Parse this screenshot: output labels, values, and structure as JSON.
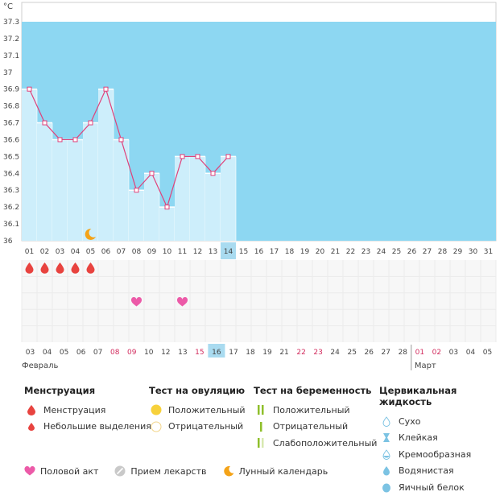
{
  "chart_data": {
    "type": "line",
    "unit": "°C",
    "ylim": [
      36.0,
      37.3
    ],
    "yticks": [
      "37.3",
      "37.2",
      "37.1",
      "37",
      "36.9",
      "36.8",
      "36.7",
      "36.6",
      "36.5",
      "36.4",
      "36.3",
      "36.2",
      "36.1",
      "36"
    ],
    "cycle_days": [
      "01",
      "02",
      "03",
      "04",
      "05",
      "06",
      "07",
      "08",
      "09",
      "10",
      "11",
      "12",
      "13",
      "14",
      "15",
      "16",
      "17",
      "18",
      "19",
      "20",
      "21",
      "22",
      "23",
      "24",
      "25",
      "26",
      "27",
      "28",
      "29",
      "30",
      "31"
    ],
    "temperatures": [
      36.9,
      36.7,
      36.6,
      36.6,
      36.7,
      36.9,
      36.6,
      36.3,
      36.4,
      36.2,
      36.5,
      36.5,
      36.4,
      36.5
    ],
    "highlight_cycle_day": "14",
    "menstruation_days": [
      "01",
      "02",
      "03",
      "04",
      "05"
    ],
    "intercourse_days": [
      "08",
      "11"
    ],
    "lunar_days": [
      "05"
    ],
    "dates": [
      {
        "d": "03",
        "red": false
      },
      {
        "d": "04",
        "red": false
      },
      {
        "d": "05",
        "red": false
      },
      {
        "d": "06",
        "red": false
      },
      {
        "d": "07",
        "red": false
      },
      {
        "d": "08",
        "red": true
      },
      {
        "d": "09",
        "red": true
      },
      {
        "d": "10",
        "red": false
      },
      {
        "d": "12",
        "red": false
      },
      {
        "d": "13",
        "red": false
      },
      {
        "d": "15",
        "red": true
      },
      {
        "d": "16",
        "red": false
      },
      {
        "d": "17",
        "red": false
      },
      {
        "d": "18",
        "red": false
      },
      {
        "d": "19",
        "red": false
      },
      {
        "d": "21",
        "red": false
      },
      {
        "d": "22",
        "red": true
      },
      {
        "d": "23",
        "red": true
      },
      {
        "d": "24",
        "red": false
      },
      {
        "d": "25",
        "red": false
      },
      {
        "d": "26",
        "red": false
      },
      {
        "d": "27",
        "red": false
      },
      {
        "d": "28",
        "red": false
      },
      {
        "d": "01",
        "red": true
      },
      {
        "d": "02",
        "red": true
      },
      {
        "d": "03",
        "red": false
      },
      {
        "d": "04",
        "red": false
      },
      {
        "d": "05",
        "red": false
      }
    ],
    "highlight_date": "16",
    "month_labels": [
      "Февраль",
      "Март"
    ]
  },
  "colors": {
    "background_fill": "#8dd7f2",
    "bar_fill": "#cdeefb",
    "highlight": "#a9dbf0",
    "line": "#e0417a",
    "menstruation": "#e8433f",
    "heart": "#ec5aa8",
    "moon": "#f4a318",
    "red_date": "#d22c5e"
  },
  "legend": {
    "menstruation": {
      "title": "Менструация",
      "items": [
        "Менструация",
        "Небольшие выделения"
      ]
    },
    "ovulation": {
      "title": "Тест на овуляцию",
      "items": [
        "Положительный",
        "Отрицательный"
      ]
    },
    "pregnancy": {
      "title": "Тест на беременность",
      "items": [
        "Положительный",
        "Отрицательный",
        "Слабоположительный"
      ]
    },
    "cervical": {
      "title": "Цервикальная жидкость",
      "items": [
        "Сухо",
        "Клейкая",
        "Кремообразная",
        "Водянистая",
        "Яичный белок"
      ]
    },
    "bottom": [
      "Половой акт",
      "Прием лекарств",
      "Лунный календарь"
    ]
  }
}
